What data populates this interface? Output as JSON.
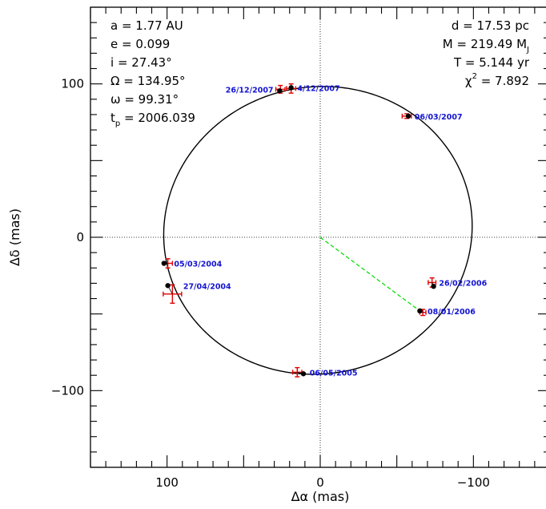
{
  "chart_data": {
    "type": "scatter",
    "title": "",
    "xlabel": "Δα (mas)",
    "ylabel": "Δδ (mas)",
    "xlim": [
      150,
      -150
    ],
    "ylim": [
      -150,
      150
    ],
    "x_ticks": [
      100,
      0,
      -100
    ],
    "y_ticks": [
      100,
      0,
      -100
    ],
    "x_tick_labels": [
      "100",
      "0",
      "−100"
    ],
    "y_tick_labels": [
      "100",
      "0",
      "−100"
    ],
    "params_left": [
      {
        "lhs": "a",
        "rhs": "= 1.77 AU"
      },
      {
        "lhs": "e",
        "rhs": "= 0.099"
      },
      {
        "lhs": "i",
        "rhs": "= 27.43°"
      },
      {
        "lhs": "Ω",
        "rhs": "= 134.95°"
      },
      {
        "lhs": "ω",
        "rhs": "= 99.31°"
      },
      {
        "lhs": "t",
        "sub": "p",
        "rhs": "= 2006.039"
      }
    ],
    "params_right": [
      {
        "lhs": "d",
        "rhs": "= 17.53 pc"
      },
      {
        "lhs": "M",
        "rhs": "= 219.49 M",
        "sub": "J"
      },
      {
        "lhs": "T",
        "rhs": "= 5.144 yr"
      },
      {
        "lhs": "χ",
        "sup": "2",
        "rhs": "= 7.892"
      }
    ],
    "orbit": {
      "center": [
        1.5,
        4.5
      ],
      "semi_axes": [
        101.0,
        93.5
      ],
      "tilt_deg": -12
    },
    "line_of_nodes": {
      "from": [
        0,
        0
      ],
      "to": [
        -65.0,
        -48.0
      ],
      "color": "#00dd00"
    },
    "observations": [
      {
        "date": "05/03/2004",
        "model": [
          102.0,
          -17.0
        ],
        "obs": [
          99.5,
          -17.0
        ],
        "xerr": 3,
        "yerr": 3,
        "label_side": "right"
      },
      {
        "date": "27/04/2004",
        "model": [
          99.5,
          -31.5
        ],
        "obs": [
          96.5,
          -37.0
        ],
        "xerr": 6,
        "yerr": 6,
        "label_side": "right"
      },
      {
        "date": "06/05/2005",
        "model": [
          11.0,
          -89.0
        ],
        "obs": [
          15.0,
          -88.0
        ],
        "xerr": 3,
        "yerr": 3,
        "label_side": "right"
      },
      {
        "date": "08/01/2006",
        "model": [
          -65.0,
          -48.0
        ],
        "obs": [
          -67.0,
          -49.0
        ],
        "xerr": 2,
        "yerr": 2,
        "label_side": "right"
      },
      {
        "date": "26/02/2006",
        "model": [
          -74.0,
          -32.0
        ],
        "obs": [
          -73.0,
          -29.5
        ],
        "xerr": 2.5,
        "yerr": 3,
        "label_side": "right"
      },
      {
        "date": "06/03/2007",
        "model": [
          -57.5,
          79.0
        ],
        "obs": [
          -56.5,
          79.0
        ],
        "xerr": 3,
        "yerr": 1.5,
        "label_side": "right"
      },
      {
        "date": "4/12/2007",
        "model": [
          19.0,
          97.5
        ],
        "obs": [
          19.0,
          97.0
        ],
        "xerr": 3,
        "yerr": 3,
        "label_side": "right"
      },
      {
        "date": "26/12/2007",
        "model": [
          26.5,
          95.5
        ],
        "obs": [
          26.0,
          96.5
        ],
        "xerr": 3,
        "yerr": 2.5,
        "label_side": "left"
      }
    ],
    "colors": {
      "model_point": "#000000",
      "obs_error": "#e00000",
      "date_label": "#1414d2",
      "orbit": "#000000",
      "node_line": "#00dd00"
    },
    "grid": false,
    "zero_lines": "dotted"
  }
}
